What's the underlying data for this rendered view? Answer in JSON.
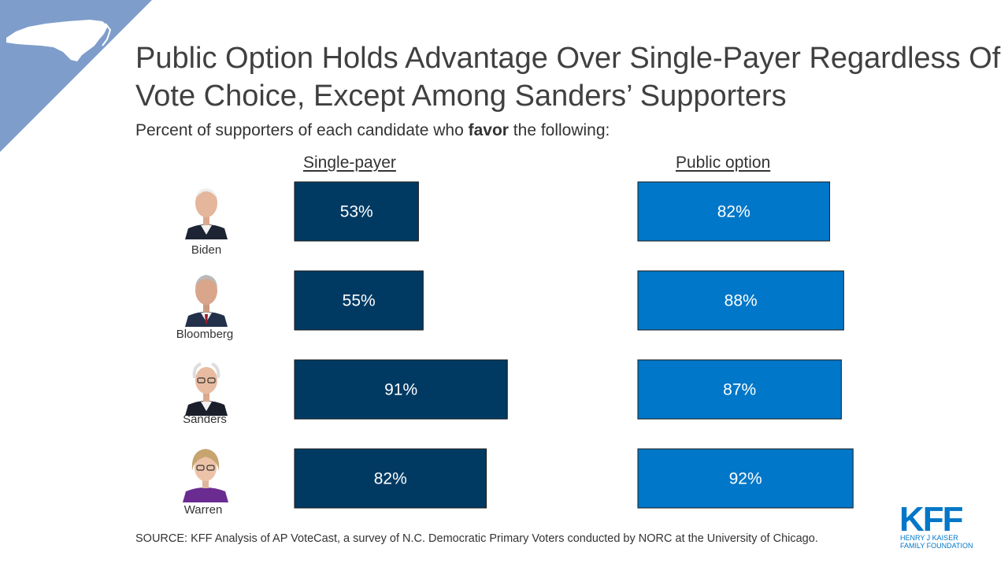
{
  "corner": {
    "state_label": "NC",
    "state_icon": "north-carolina-map-icon"
  },
  "title": "Public Option Holds Advantage Over Single-Payer Regardless Of Vote Choice, Except Among Sanders’ Supporters",
  "subtitle": {
    "before": "Percent of supporters of each candidate who ",
    "bold": "favor",
    "after": " the following:"
  },
  "source": "SOURCE: KFF Analysis of AP VoteCast, a survey of N.C. Democratic Primary Voters conducted by NORC at the University of Chicago.",
  "logo": {
    "mark": "KFF",
    "line1": "HENRY J KAISER",
    "line2": "FAMILY FOUNDATION"
  },
  "colors": {
    "corner": "#7f9dcb",
    "single_payer": "#003a63",
    "public_option": "#0077c8",
    "logo": "#0077c8"
  },
  "candidates": [
    {
      "name": "Biden",
      "icon": "biden-portrait-icon"
    },
    {
      "name": "Bloomberg",
      "icon": "bloomberg-portrait-icon"
    },
    {
      "name": "Sanders",
      "icon": "sanders-portrait-icon"
    },
    {
      "name": "Warren",
      "icon": "warren-portrait-icon"
    }
  ],
  "chart_data": {
    "type": "bar",
    "orientation": "horizontal",
    "categories": [
      "Biden",
      "Bloomberg",
      "Sanders",
      "Warren"
    ],
    "series": [
      {
        "name": "Single-payer",
        "values": [
          53,
          55,
          91,
          82
        ],
        "labels": [
          "53%",
          "55%",
          "91%",
          "82%"
        ]
      },
      {
        "name": "Public option",
        "values": [
          82,
          88,
          87,
          92
        ],
        "labels": [
          "82%",
          "88%",
          "87%",
          "92%"
        ]
      }
    ],
    "unit": "%",
    "xlim": [
      0,
      100
    ],
    "grid": false,
    "legend": "none"
  }
}
